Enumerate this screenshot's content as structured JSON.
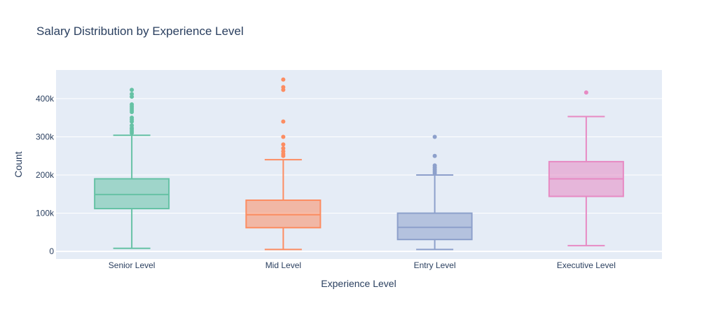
{
  "chart_data": {
    "type": "box",
    "title": "Salary Distribution by Experience Level",
    "xlabel": "Experience Level",
    "ylabel": "Count",
    "ylim": [
      -20000,
      475000
    ],
    "y_ticks": [
      {
        "value": 0,
        "label": "0"
      },
      {
        "value": 100000,
        "label": "100k"
      },
      {
        "value": 200000,
        "label": "200k"
      },
      {
        "value": 300000,
        "label": "300k"
      },
      {
        "value": 400000,
        "label": "400k"
      }
    ],
    "grid": true,
    "colors": {
      "plot_bg": "#e5ecf6",
      "grid": "#ffffff",
      "text": "#2a3f5f"
    },
    "series": [
      {
        "name": "Senior Level",
        "line_color": "#66c2a5",
        "fill_color": "rgba(102,194,165,0.55)",
        "min": 8000,
        "q1": 112000,
        "median": 149000,
        "q3": 190000,
        "max": 304000,
        "outliers": [
          310000,
          315000,
          320000,
          323000,
          330000,
          340000,
          345000,
          350000,
          365000,
          370000,
          375000,
          380000,
          385000,
          405000,
          412000,
          423000
        ]
      },
      {
        "name": "Mid Level",
        "line_color": "#fc8d62",
        "fill_color": "rgba(252,141,98,0.55)",
        "min": 5000,
        "q1": 62000,
        "median": 96000,
        "q3": 134000,
        "max": 240000,
        "outliers": [
          250000,
          255000,
          262000,
          270000,
          280000,
          300000,
          340000,
          423000,
          430000,
          450000
        ]
      },
      {
        "name": "Entry Level",
        "line_color": "#8da0cb",
        "fill_color": "rgba(141,160,203,0.55)",
        "min": 5000,
        "q1": 31000,
        "median": 63000,
        "q3": 100000,
        "max": 200000,
        "outliers": [
          205000,
          210000,
          215000,
          220000,
          225000,
          250000,
          300000
        ]
      },
      {
        "name": "Executive Level",
        "line_color": "#e78ac3",
        "fill_color": "rgba(231,138,195,0.55)",
        "min": 15000,
        "q1": 144000,
        "median": 190000,
        "q3": 235000,
        "max": 353000,
        "outliers": [
          416000
        ]
      }
    ]
  }
}
